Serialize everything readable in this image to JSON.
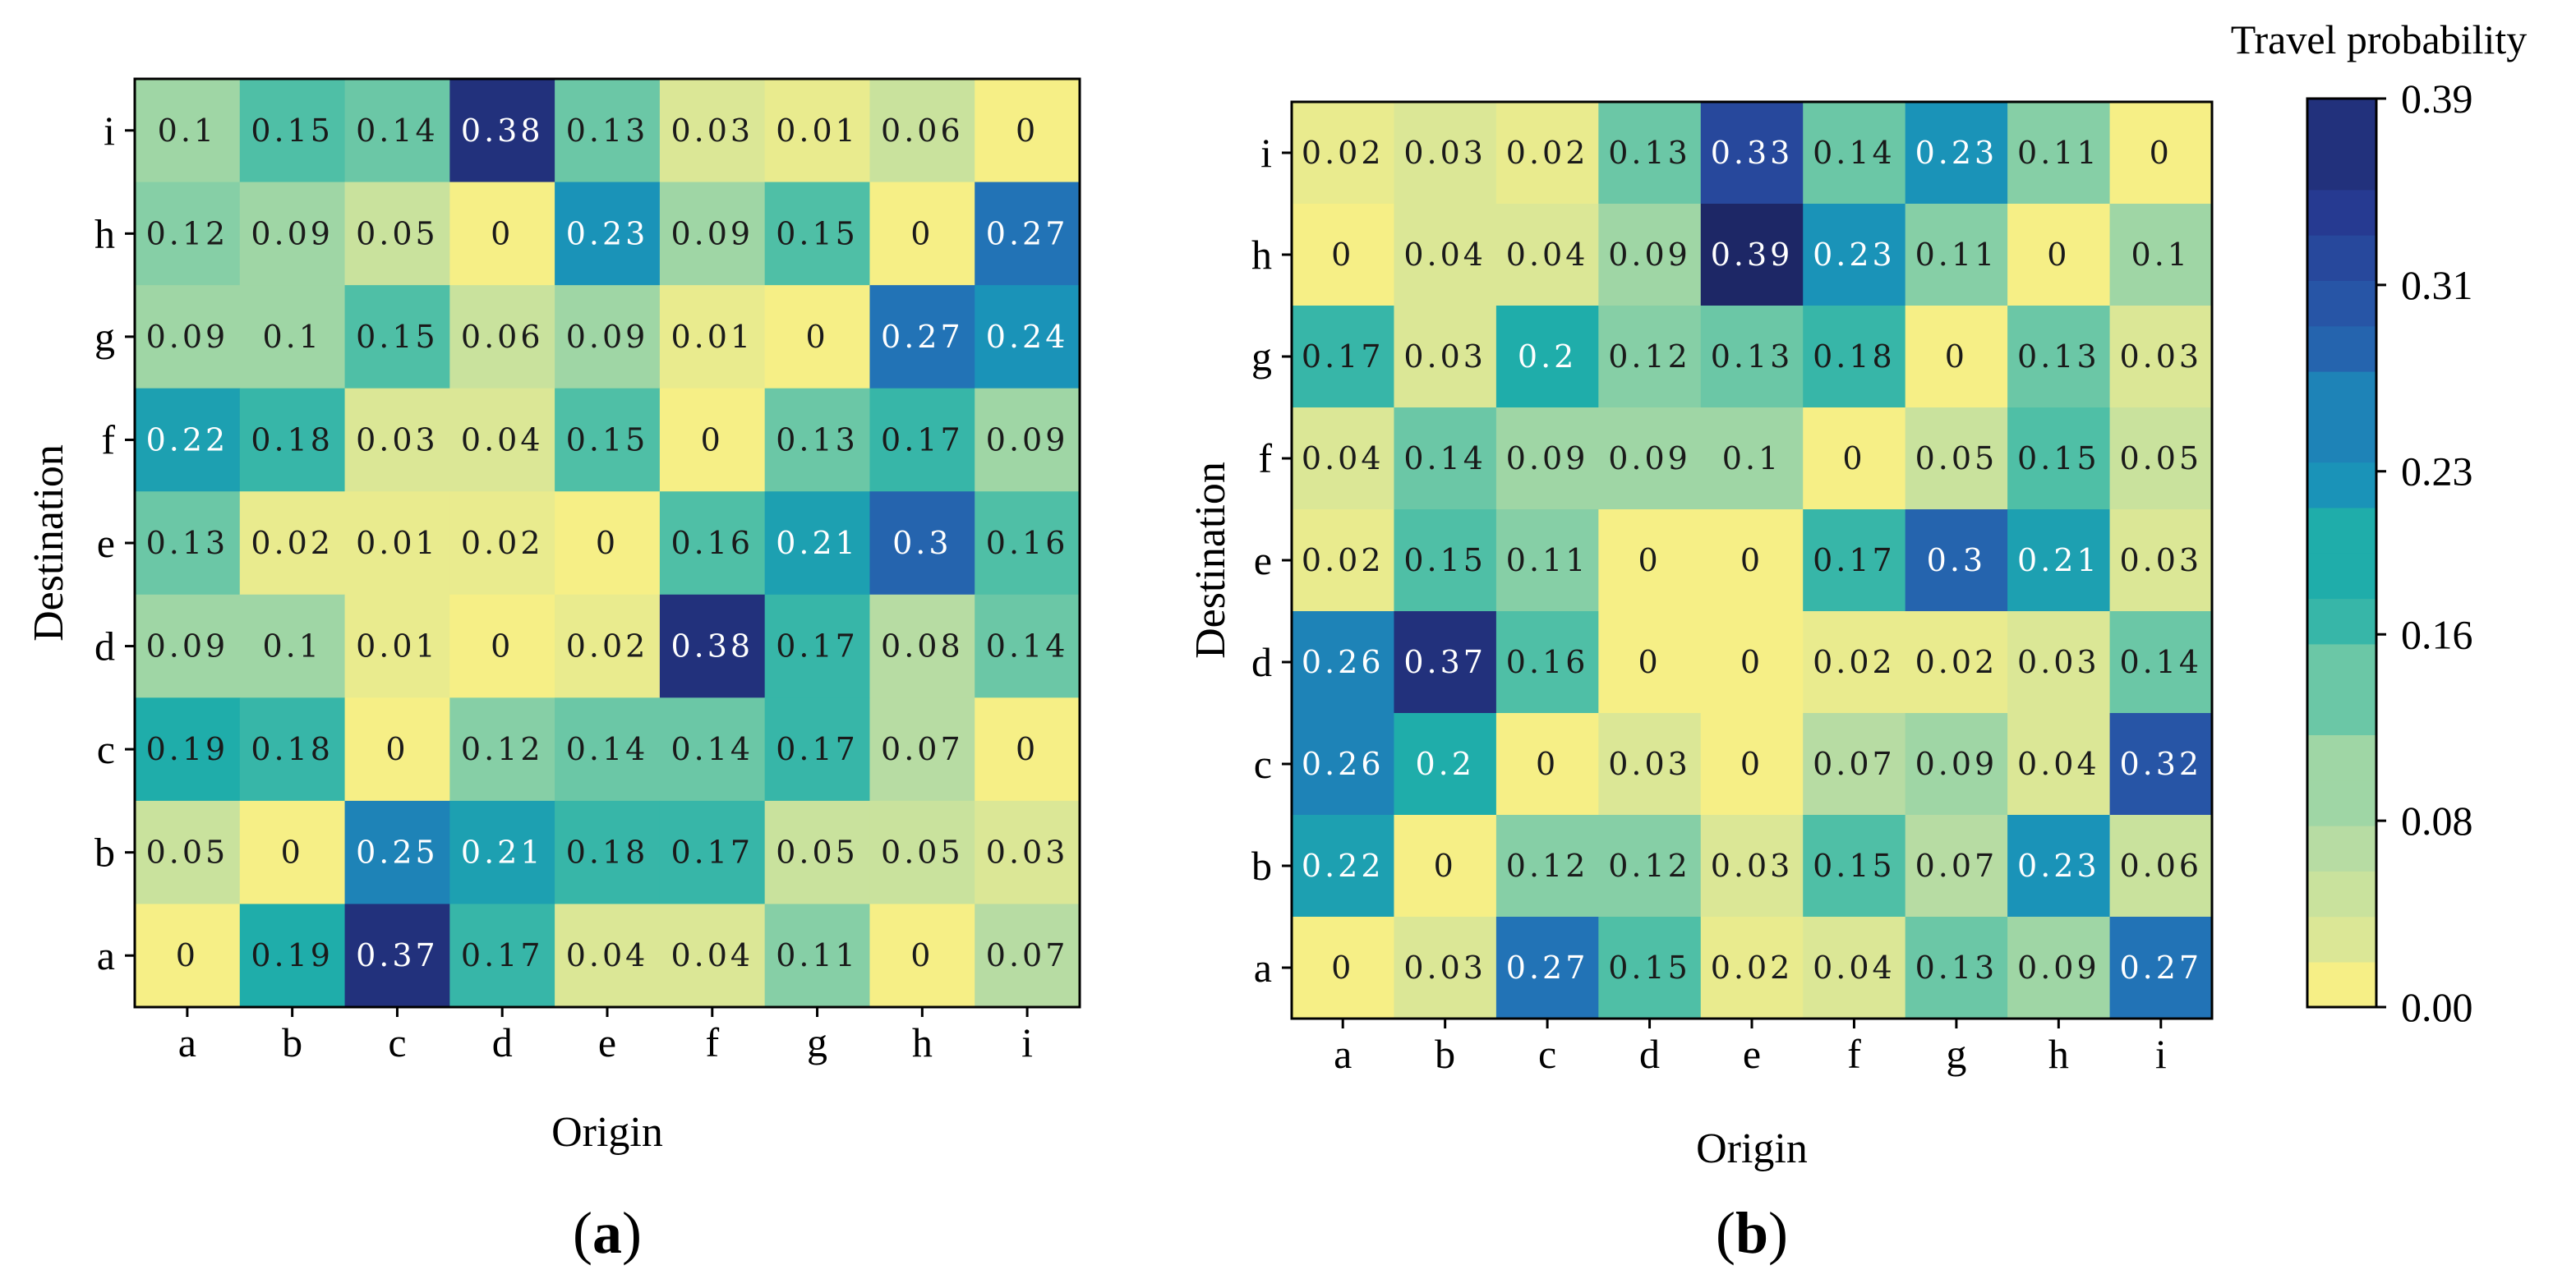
{
  "chart_data": [
    {
      "type": "heatmap",
      "panel_label_open": "(",
      "panel_label_letter": "a",
      "panel_label_close": ")",
      "xlabel": "Origin",
      "ylabel": "Destination",
      "x_categories": [
        "a",
        "b",
        "c",
        "d",
        "e",
        "f",
        "g",
        "h",
        "i"
      ],
      "y_categories": [
        "a",
        "b",
        "c",
        "d",
        "e",
        "f",
        "g",
        "h",
        "i"
      ],
      "matrix": [
        [
          "0.1",
          "0.15",
          "0.14",
          "0.38",
          "0.13",
          "0.03",
          "0.01",
          "0.06",
          "0"
        ],
        [
          "0.12",
          "0.09",
          "0.05",
          "0",
          "0.23",
          "0.09",
          "0.15",
          "0",
          "0.27"
        ],
        [
          "0.09",
          "0.1",
          "0.15",
          "0.06",
          "0.09",
          "0.01",
          "0",
          "0.27",
          "0.24"
        ],
        [
          "0.22",
          "0.18",
          "0.03",
          "0.04",
          "0.15",
          "0",
          "0.13",
          "0.17",
          "0.09"
        ],
        [
          "0.13",
          "0.02",
          "0.01",
          "0.02",
          "0",
          "0.16",
          "0.21",
          "0.3",
          "0.16"
        ],
        [
          "0.09",
          "0.1",
          "0.01",
          "0",
          "0.02",
          "0.38",
          "0.17",
          "0.08",
          "0.14"
        ],
        [
          "0.19",
          "0.18",
          "0",
          "0.12",
          "0.14",
          "0.14",
          "0.17",
          "0.07",
          "0"
        ],
        [
          "0.05",
          "0",
          "0.25",
          "0.21",
          "0.18",
          "0.17",
          "0.05",
          "0.05",
          "0.03"
        ],
        [
          "0",
          "0.19",
          "0.37",
          "0.17",
          "0.04",
          "0.04",
          "0.11",
          "0",
          "0.07"
        ]
      ],
      "matrix_row_order": "top-to-bottom: i, h, g, f, e, d, c, b, a"
    },
    {
      "type": "heatmap",
      "panel_label_open": "(",
      "panel_label_letter": "b",
      "panel_label_close": ")",
      "xlabel": "Origin",
      "ylabel": "Destination",
      "x_categories": [
        "a",
        "b",
        "c",
        "d",
        "e",
        "f",
        "g",
        "h",
        "i"
      ],
      "y_categories": [
        "a",
        "b",
        "c",
        "d",
        "e",
        "f",
        "g",
        "h",
        "i"
      ],
      "matrix": [
        [
          "0.02",
          "0.03",
          "0.02",
          "0.13",
          "0.33",
          "0.14",
          "0.23",
          "0.11",
          "0"
        ],
        [
          "0",
          "0.04",
          "0.04",
          "0.09",
          "0.39",
          "0.23",
          "0.11",
          "0",
          "0.1"
        ],
        [
          "0.17",
          "0.03",
          "0.2",
          "0.12",
          "0.13",
          "0.18",
          "0",
          "0.13",
          "0.03"
        ],
        [
          "0.04",
          "0.14",
          "0.09",
          "0.09",
          "0.1",
          "0",
          "0.05",
          "0.15",
          "0.05"
        ],
        [
          "0.02",
          "0.15",
          "0.11",
          "0",
          "0",
          "0.17",
          "0.3",
          "0.21",
          "0.03"
        ],
        [
          "0.26",
          "0.37",
          "0.16",
          "0",
          "0",
          "0.02",
          "0.02",
          "0.03",
          "0.14"
        ],
        [
          "0.26",
          "0.2",
          "0",
          "0.03",
          "0",
          "0.07",
          "0.09",
          "0.04",
          "0.32"
        ],
        [
          "0.22",
          "0",
          "0.12",
          "0.12",
          "0.03",
          "0.15",
          "0.07",
          "0.23",
          "0.06"
        ],
        [
          "0",
          "0.03",
          "0.27",
          "0.15",
          "0.02",
          "0.04",
          "0.13",
          "0.09",
          "0.27"
        ]
      ],
      "matrix_row_order": "top-to-bottom: i, h, g, f, e, d, c, b, a"
    }
  ],
  "colorbar": {
    "title": "Travel probability",
    "min": 0,
    "max": 0.39,
    "ticks": [
      "0.39",
      "0.31",
      "0.23",
      "0.16",
      "0.08",
      "0.00"
    ],
    "colormap_stops": [
      "#f6ef86",
      "#dbe796",
      "#b7dca3",
      "#86cfa6",
      "#4fbfa6",
      "#1fadaa",
      "#1a93b8",
      "#2273b6",
      "#2755a6",
      "#263a91",
      "#1d2766"
    ]
  }
}
